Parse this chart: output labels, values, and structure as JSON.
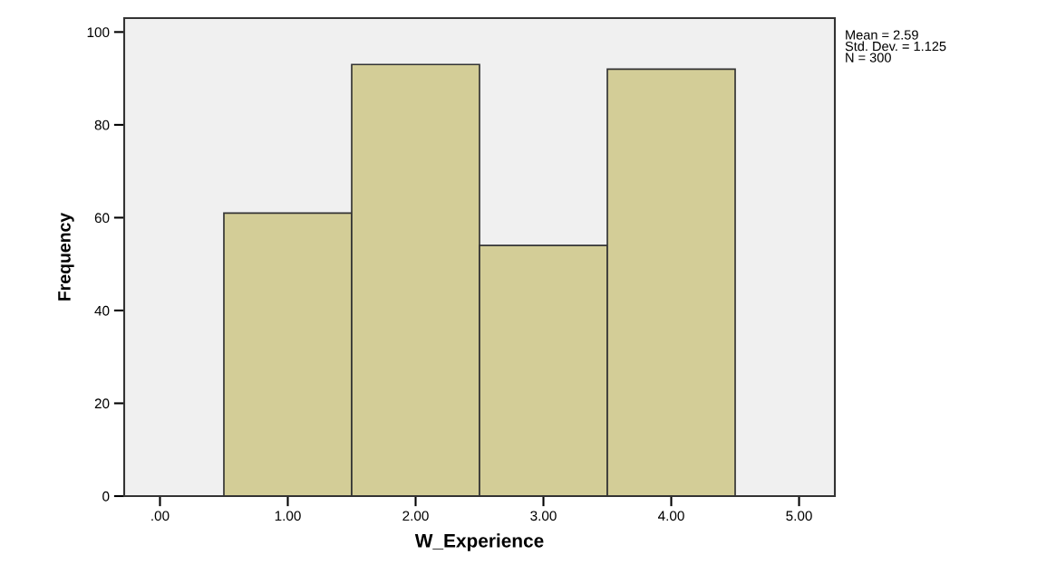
{
  "chart_data": {
    "type": "histogram",
    "xlabel": "W_Experience",
    "ylabel": "Frequency",
    "bins": [
      0.5,
      1.5,
      2.5,
      3.5,
      4.5
    ],
    "values": [
      61,
      93,
      54,
      92
    ],
    "color": "#d3cd97",
    "xlim": [
      -0.28,
      5.28
    ],
    "xticks": [
      {
        "value": 0,
        "label": ".00"
      },
      {
        "value": 1,
        "label": "1.00"
      },
      {
        "value": 2,
        "label": "2.00"
      },
      {
        "value": 3,
        "label": "3.00"
      },
      {
        "value": 4,
        "label": "4.00"
      },
      {
        "value": 5,
        "label": "5.00"
      }
    ],
    "ylim": [
      0,
      103
    ],
    "yticks": [
      0,
      20,
      40,
      60,
      80,
      100
    ],
    "grid": false,
    "legend": false,
    "annotations": [
      "Mean = 2.59\nStd. Dev. = 1.125\nN = 300"
    ]
  }
}
